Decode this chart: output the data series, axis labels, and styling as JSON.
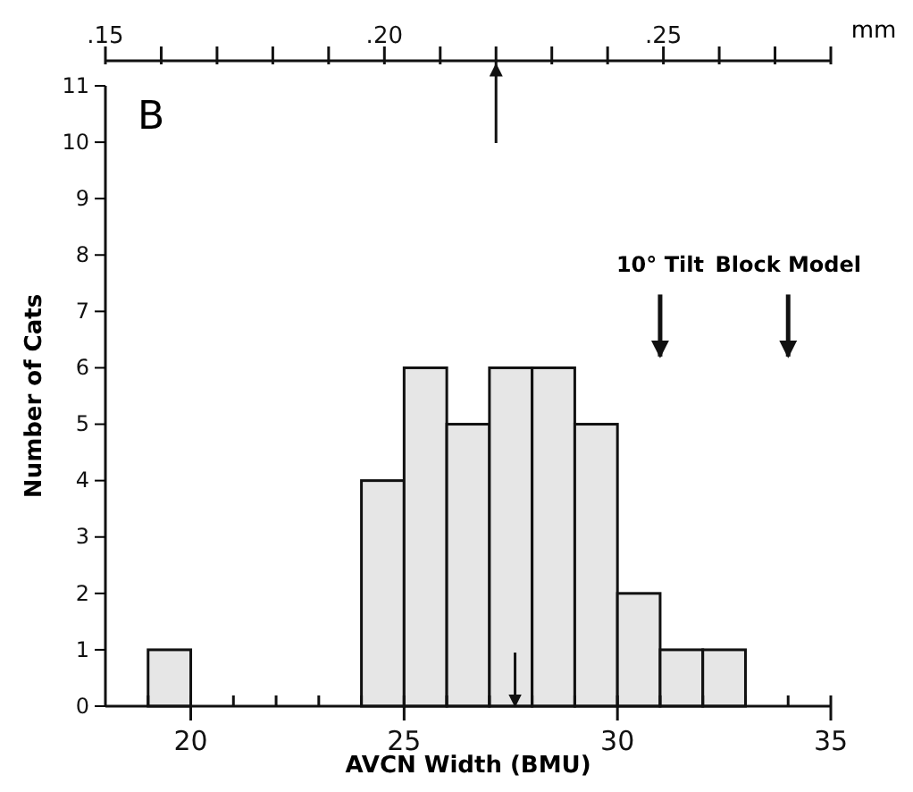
{
  "chart_data": {
    "type": "histogram",
    "xlabel": "AVCN Width (BMU)",
    "ylabel": "Number of Cats",
    "x2label": "mm",
    "bins": [
      19,
      20,
      21,
      22,
      23,
      24,
      25,
      26,
      27,
      28,
      29,
      30,
      31,
      32,
      33
    ],
    "values": [
      1,
      0,
      0,
      0,
      0,
      4,
      6,
      5,
      6,
      6,
      5,
      2,
      1,
      1
    ],
    "color": "#e6e6e6",
    "xlim": [
      18,
      35
    ],
    "xticks": [
      {
        "value": 19,
        "label": null
      },
      20,
      {
        "value": 21,
        "label": null
      },
      {
        "value": 22,
        "label": null
      },
      {
        "value": 23,
        "label": null
      },
      {
        "value": 24,
        "label": null
      },
      25,
      {
        "value": 26,
        "label": null
      },
      {
        "value": 27,
        "label": null
      },
      {
        "value": 28,
        "label": null
      },
      {
        "value": 29,
        "label": null
      },
      30,
      {
        "value": 31,
        "label": null
      },
      {
        "value": 32,
        "label": null
      },
      {
        "value": 33,
        "label": null
      },
      {
        "value": 34,
        "label": null
      },
      35
    ],
    "x2lim": [
      0.15,
      0.28
    ],
    "x2ticks": [
      {
        "value": 0.15,
        "label": ".15"
      },
      {
        "value": 0.16,
        "label": null
      },
      {
        "value": 0.17,
        "label": null
      },
      {
        "value": 0.18,
        "label": null
      },
      {
        "value": 0.19,
        "label": null
      },
      {
        "value": 0.2,
        "label": ".20"
      },
      {
        "value": 0.21,
        "label": null
      },
      {
        "value": 0.22,
        "label": null
      },
      {
        "value": 0.23,
        "label": null
      },
      {
        "value": 0.24,
        "label": null
      },
      {
        "value": 0.25,
        "label": ".25"
      },
      {
        "value": 0.26,
        "label": null
      },
      {
        "value": 0.27,
        "label": null
      },
      {
        "value": 0.28,
        "label": null
      }
    ],
    "ylim": [
      0,
      11
    ],
    "yticks": [
      0,
      1,
      2,
      3,
      4,
      5,
      6,
      7,
      8,
      9,
      10,
      11
    ],
    "ref_lines": [
      {
        "axis": "x",
        "value": 27.6
      },
      {
        "axis": "x2",
        "value": 0.22
      },
      {
        "axis": "x",
        "value": 31,
        "label": "10° Tilt"
      },
      {
        "axis": "x",
        "value": 34,
        "label": "Block Model"
      }
    ],
    "annotations": [
      "B"
    ],
    "grid": false
  }
}
